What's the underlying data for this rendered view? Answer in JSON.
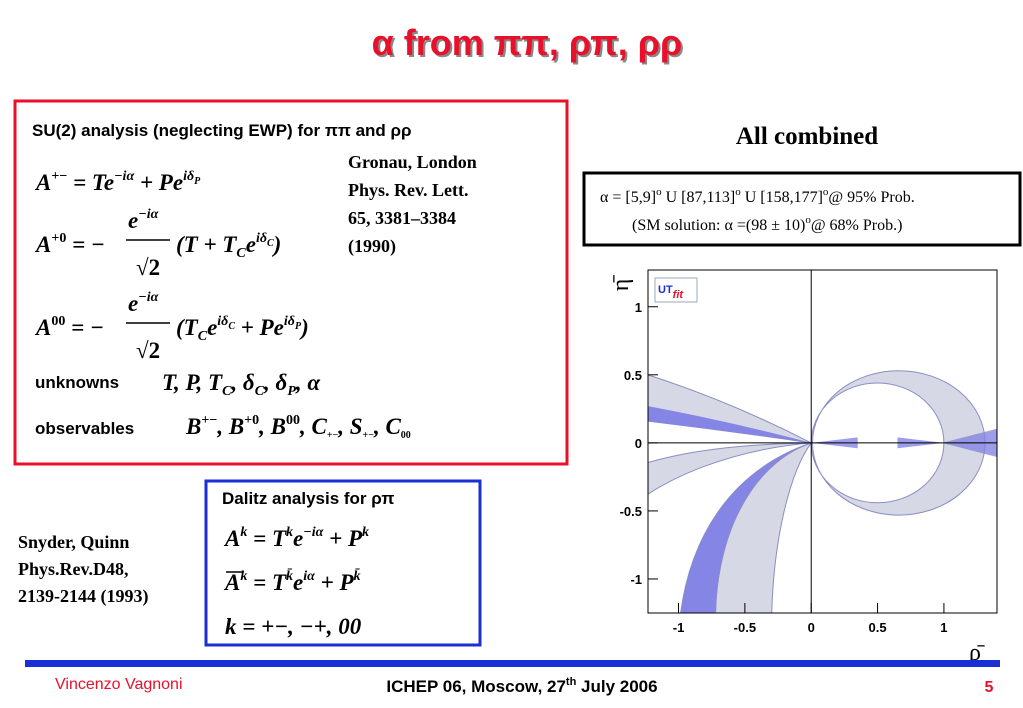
{
  "title": "α from ππ, ρπ, ρρ",
  "su2": {
    "heading": "SU(2) analysis (neglecting EWP)  for ππ and ρρ",
    "eq1": [
      "A",
      "+−",
      " = Te",
      "−iα",
      " + Pe",
      "iδ",
      "P"
    ],
    "eq2": [
      "A",
      "+0",
      " = −",
      "e",
      "−iα",
      "√2",
      "(T + T",
      "C",
      "e",
      "iδ",
      "C",
      ")"
    ],
    "eq3": [
      "A",
      "00",
      " = −",
      "e",
      "−iα",
      "√2",
      "(T",
      "C",
      "e",
      "iδ",
      "C",
      " + Pe",
      "iδ",
      "P",
      ")"
    ],
    "unknowns_label": "unknowns",
    "unknowns": [
      "T, P, T",
      "C",
      ", δ",
      "C",
      ", δ",
      "P",
      ", α"
    ],
    "observables_label": "observables",
    "observables": [
      "B",
      "+−",
      ", B",
      "+0",
      ", B",
      "00",
      ", C",
      "+−",
      ", S",
      "+−",
      ", C",
      "00"
    ],
    "reference": [
      "Gronau, London",
      "Phys. Rev. Lett.",
      "65, 3381–3384",
      "(1990)"
    ]
  },
  "combined": {
    "heading": "All combined",
    "lines": [
      [
        "α = [5,9]",
        "o",
        " U [87,113]",
        "o",
        " U [158,177]",
        "o",
        "@ 95% Prob."
      ],
      [
        "(SM solution: α =(98 ± 10)",
        "o",
        "@ 68% Prob.)"
      ]
    ]
  },
  "plot": {
    "xlim": [
      -1.23,
      1.4
    ],
    "ylim": [
      -1.25,
      1.27
    ],
    "xticks": [
      -1,
      -0.5,
      0,
      0.5,
      1
    ],
    "yticks": [
      1,
      0.5,
      0,
      -0.5,
      -1
    ],
    "xlabel": "ρ̄",
    "ylabel": "η̄",
    "logo": [
      "UT",
      "fit"
    ]
  },
  "dalitz": {
    "heading": "Dalitz analysis for ρπ",
    "eq1": [
      "A",
      "k",
      " = T",
      "k",
      "e",
      "−iα",
      " + P",
      "k"
    ],
    "eq2": [
      "A",
      "k",
      " = T",
      "k̄",
      "e",
      "iα",
      " + P",
      "k̄"
    ],
    "eq3": "k = +−, −+, 00",
    "reference": [
      "Snyder, Quinn",
      "Phys.Rev.D48,",
      "2139-2144 (1993)"
    ]
  },
  "footer": {
    "author": "Vincenzo Vagnoni",
    "event": [
      "ICHEP 06, Moscow, 27",
      "th",
      " July 2006"
    ],
    "page": "5"
  }
}
